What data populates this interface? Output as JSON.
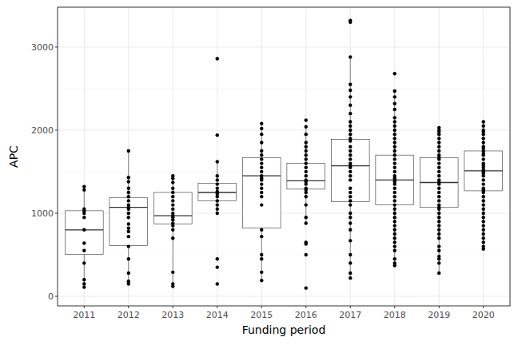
{
  "chart_data": {
    "type": "box",
    "xlabel": "Funding period",
    "ylabel": "APC",
    "categories": [
      "2011",
      "2012",
      "2013",
      "2014",
      "2015",
      "2016",
      "2017",
      "2018",
      "2019",
      "2020"
    ],
    "boxes": [
      {
        "lower": 110,
        "q1": 505,
        "median": 800,
        "q3": 1030,
        "upper": 1320
      },
      {
        "lower": 150,
        "q1": 610,
        "median": 1070,
        "q3": 1190,
        "upper": 1750
      },
      {
        "lower": 120,
        "q1": 870,
        "median": 970,
        "q3": 1250,
        "upper": 1450
      },
      {
        "lower": 1000,
        "q1": 1150,
        "median": 1250,
        "q3": 1360,
        "upper": 1620
      },
      {
        "lower": 190,
        "q1": 820,
        "median": 1450,
        "q3": 1670,
        "upper": 2080
      },
      {
        "lower": 880,
        "q1": 1290,
        "median": 1390,
        "q3": 1600,
        "upper": 2040
      },
      {
        "lower": 220,
        "q1": 1140,
        "median": 1570,
        "q3": 1890,
        "upper": 2880
      },
      {
        "lower": 370,
        "q1": 1100,
        "median": 1400,
        "q3": 1700,
        "upper": 2470
      },
      {
        "lower": 280,
        "q1": 1070,
        "median": 1370,
        "q3": 1670,
        "upper": 2030
      },
      {
        "lower": 570,
        "q1": 1270,
        "median": 1510,
        "q3": 1750,
        "upper": 2100
      }
    ],
    "points": [
      [
        1320,
        1280,
        1050,
        1030,
        1000,
        950,
        800,
        640,
        550,
        400,
        200,
        150,
        110
      ],
      [
        1750,
        1430,
        1380,
        1300,
        1250,
        1200,
        1150,
        1100,
        1070,
        1050,
        1000,
        950,
        870,
        820,
        780,
        720,
        600,
        450,
        280,
        180,
        150
      ],
      [
        1450,
        1420,
        1370,
        1300,
        1250,
        1200,
        1150,
        1100,
        1050,
        1000,
        970,
        950,
        920,
        880,
        850,
        800,
        700,
        290,
        150,
        120
      ],
      [
        2860,
        1940,
        1620,
        1450,
        1400,
        1350,
        1300,
        1260,
        1250,
        1230,
        1200,
        1150,
        1100,
        1050,
        1000,
        450,
        350,
        150
      ],
      [
        2080,
        2020,
        1950,
        1850,
        1750,
        1700,
        1650,
        1600,
        1550,
        1500,
        1450,
        1420,
        1400,
        1350,
        1300,
        1250,
        1200,
        1100,
        800,
        720,
        500,
        450,
        290,
        190
      ],
      [
        2120,
        2040,
        1950,
        1850,
        1800,
        1750,
        1700,
        1650,
        1600,
        1550,
        1500,
        1450,
        1400,
        1380,
        1350,
        1300,
        1280,
        1250,
        1200,
        1100,
        950,
        880,
        650,
        630,
        500,
        100
      ],
      [
        3320,
        3300,
        2880,
        2550,
        2480,
        2400,
        2300,
        2200,
        2100,
        2050,
        2000,
        1950,
        1900,
        1870,
        1800,
        1750,
        1700,
        1650,
        1600,
        1570,
        1550,
        1500,
        1450,
        1400,
        1300,
        1250,
        1200,
        1150,
        1100,
        1000,
        950,
        880,
        800,
        670,
        500,
        400,
        280,
        220
      ],
      [
        2680,
        2470,
        2400,
        2320,
        2250,
        2150,
        2100,
        2050,
        2000,
        1950,
        1900,
        1850,
        1800,
        1750,
        1700,
        1650,
        1600,
        1550,
        1500,
        1450,
        1420,
        1400,
        1380,
        1350,
        1300,
        1250,
        1200,
        1150,
        1100,
        1050,
        1000,
        950,
        900,
        850,
        800,
        750,
        700,
        650,
        600,
        550,
        450,
        400,
        370
      ],
      [
        2030,
        2000,
        1980,
        1950,
        1900,
        1850,
        1800,
        1750,
        1700,
        1670,
        1650,
        1600,
        1550,
        1500,
        1450,
        1400,
        1370,
        1350,
        1300,
        1250,
        1200,
        1150,
        1100,
        1070,
        1050,
        1000,
        950,
        900,
        850,
        800,
        750,
        700,
        600,
        550,
        480,
        450,
        400,
        280
      ],
      [
        2100,
        2050,
        2000,
        1980,
        1950,
        1900,
        1850,
        1800,
        1780,
        1750,
        1720,
        1700,
        1650,
        1600,
        1580,
        1550,
        1520,
        1510,
        1500,
        1480,
        1450,
        1400,
        1350,
        1300,
        1280,
        1270,
        1250,
        1200,
        1150,
        1100,
        1050,
        1000,
        950,
        900,
        850,
        800,
        750,
        700,
        650,
        600,
        570
      ]
    ],
    "ylim": [
      -115,
      3480
    ],
    "yticks": [
      0,
      1000,
      2000,
      3000
    ],
    "grid": true
  }
}
